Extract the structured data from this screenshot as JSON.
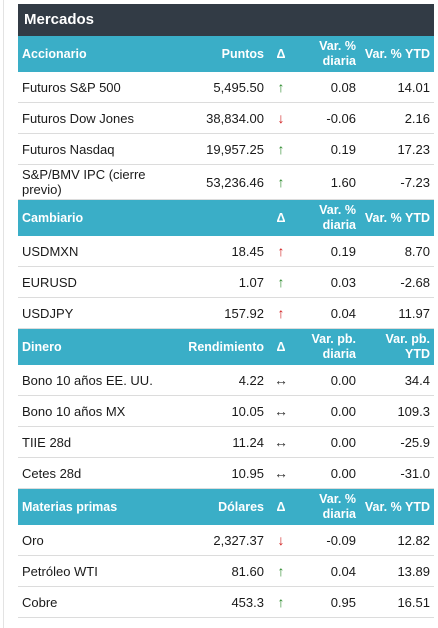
{
  "title": "Mercados",
  "colors": {
    "header_bg": "#3aaec7",
    "title_bg": "#323b45",
    "up": "#2e8b2e",
    "down": "#d02020"
  },
  "sections": [
    {
      "header": {
        "label": "Accionario",
        "col2": "Puntos",
        "col3": "Δ",
        "col4": "Var. % diaria",
        "col5": "Var. % YTD"
      },
      "rows": [
        {
          "name": "Futuros S&P 500",
          "value": "5,495.50",
          "arrow": "up",
          "var_daily": "0.08",
          "var_ytd": "14.01"
        },
        {
          "name": "Futuros Dow Jones",
          "value": "38,834.00",
          "arrow": "down",
          "var_daily": "-0.06",
          "var_ytd": "2.16"
        },
        {
          "name": "Futuros Nasdaq",
          "value": "19,957.25",
          "arrow": "up",
          "var_daily": "0.19",
          "var_ytd": "17.23"
        },
        {
          "name": "S&P/BMV IPC (cierre previo)",
          "value": "53,236.46",
          "arrow": "up",
          "var_daily": "1.60",
          "var_ytd": "-7.23"
        }
      ]
    },
    {
      "header": {
        "label": "Cambiario",
        "col2": "",
        "col3": "Δ",
        "col4": "Var. % diaria",
        "col5": "Var. % YTD"
      },
      "rows": [
        {
          "name": "USDMXN",
          "value": "18.45",
          "arrow": "up-red",
          "var_daily": "0.19",
          "var_ytd": "8.70"
        },
        {
          "name": "EURUSD",
          "value": "1.07",
          "arrow": "up",
          "var_daily": "0.03",
          "var_ytd": "-2.68"
        },
        {
          "name": "USDJPY",
          "value": "157.92",
          "arrow": "up-red",
          "var_daily": "0.04",
          "var_ytd": "11.97"
        }
      ]
    },
    {
      "header": {
        "label": "Dinero",
        "col2": "Rendimiento",
        "col3": "Δ",
        "col4": "Var. pb. diaria",
        "col5": "Var. pb. YTD"
      },
      "rows": [
        {
          "name": "Bono 10 años EE. UU.",
          "value": "4.22",
          "arrow": "flat",
          "var_daily": "0.00",
          "var_ytd": "34.4"
        },
        {
          "name": "Bono 10 años MX",
          "value": "10.05",
          "arrow": "flat",
          "var_daily": "0.00",
          "var_ytd": "109.3"
        },
        {
          "name": "TIIE 28d",
          "value": "11.24",
          "arrow": "flat",
          "var_daily": "0.00",
          "var_ytd": "-25.9"
        },
        {
          "name": "Cetes 28d",
          "value": "10.95",
          "arrow": "flat",
          "var_daily": "0.00",
          "var_ytd": "-31.0"
        }
      ]
    },
    {
      "header": {
        "label": "Materias primas",
        "col2": "Dólares",
        "col3": "Δ",
        "col4": "Var. % diaria",
        "col5": "Var. % YTD"
      },
      "rows": [
        {
          "name": "Oro",
          "value": "2,327.37",
          "arrow": "down",
          "var_daily": "-0.09",
          "var_ytd": "12.82"
        },
        {
          "name": "Petróleo WTI",
          "value": "81.60",
          "arrow": "up",
          "var_daily": "0.04",
          "var_ytd": "13.89"
        },
        {
          "name": "Cobre",
          "value": "453.3",
          "arrow": "up",
          "var_daily": "0.95",
          "var_ytd": "16.51"
        }
      ]
    }
  ]
}
